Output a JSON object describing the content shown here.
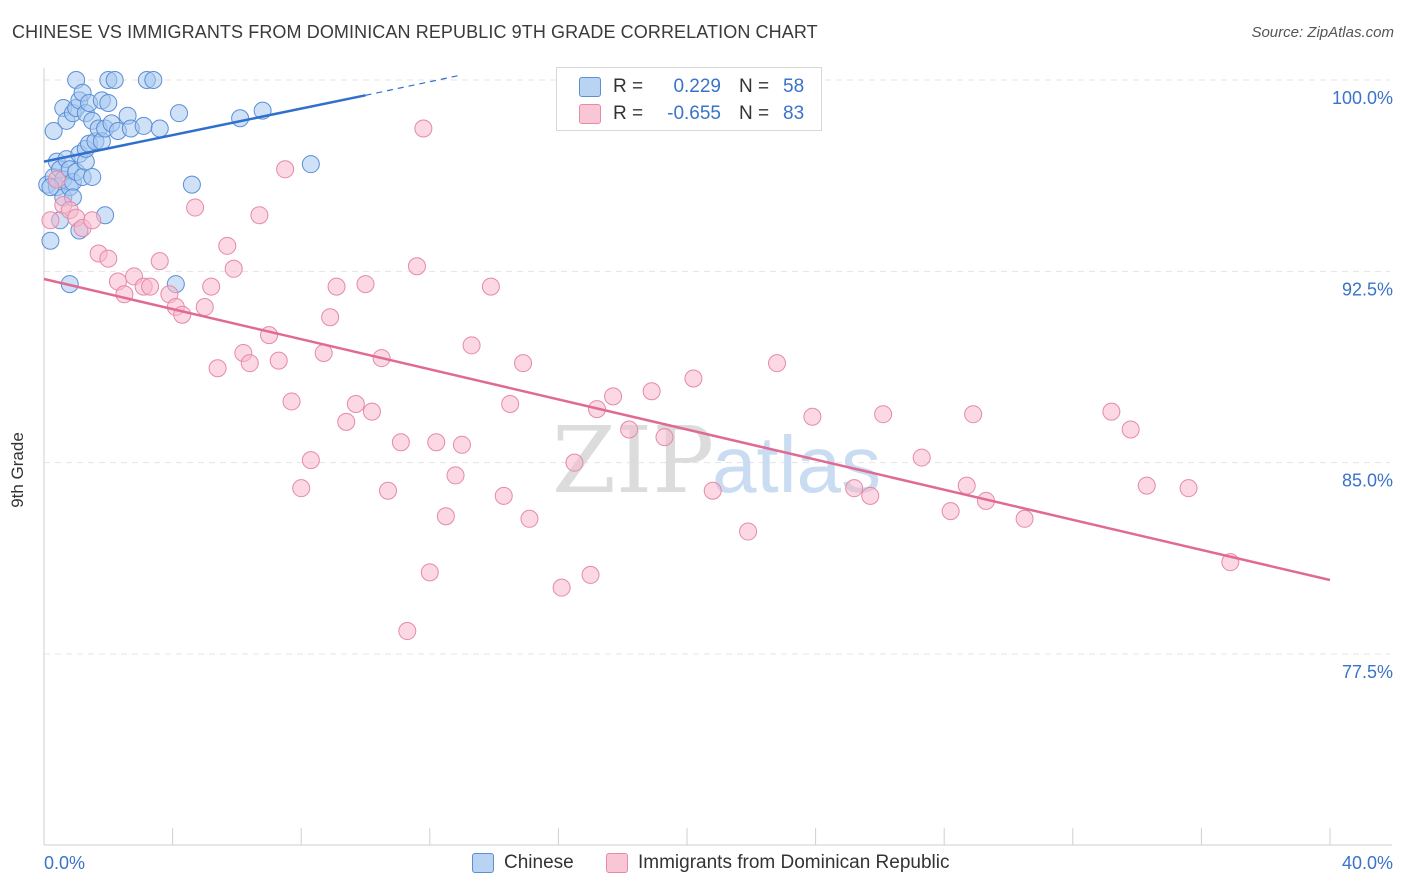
{
  "title": "CHINESE VS IMMIGRANTS FROM DOMINICAN REPUBLIC 9TH GRADE CORRELATION CHART",
  "source": "Source: ZipAtlas.com",
  "watermark": {
    "zip": "ZIP",
    "atlas": "atlas"
  },
  "legend": {
    "r_label": "R =",
    "n_label": "N =",
    "rows": [
      {
        "r": "0.229",
        "n": "58"
      },
      {
        "r": "-0.655",
        "n": "83"
      }
    ]
  },
  "colors": {
    "chinese_fill": "#a8c8f0",
    "chinese_stroke": "#5b8fd6",
    "chinese_line": "#2f6fce",
    "dominican_fill": "#f7b8cc",
    "dominican_stroke": "#e58aa8",
    "dominican_line": "#e06a94",
    "grid": "#e4e4e4",
    "axis_text": "#3a73c9"
  },
  "chart_data": {
    "type": "scatter",
    "title": "CHINESE VS IMMIGRANTS FROM DOMINICAN REPUBLIC 9TH GRADE CORRELATION CHART",
    "xlabel": "",
    "ylabel": "9th Grade",
    "xlim": [
      0,
      40
    ],
    "ylim": [
      70,
      100.5
    ],
    "x_tick_labels": [
      "0.0%",
      "40.0%"
    ],
    "y_ticks": [
      77.5,
      85.0,
      92.5,
      100.0
    ],
    "y_tick_labels": [
      "77.5%",
      "85.0%",
      "92.5%",
      "100.0%"
    ],
    "legend_position": "top-center",
    "grid": true,
    "series": [
      {
        "name": "Chinese",
        "r": 0.229,
        "n": 58,
        "trend": {
          "x": [
            0,
            10
          ],
          "y": [
            96.8,
            99.4
          ],
          "dashed_to": [
            13,
            100.2
          ]
        },
        "points": [
          [
            0.1,
            95.9
          ],
          [
            0.2,
            93.7
          ],
          [
            0.3,
            98.0
          ],
          [
            0.3,
            96.2
          ],
          [
            0.4,
            96.8
          ],
          [
            0.4,
            95.8
          ],
          [
            0.5,
            96.5
          ],
          [
            0.5,
            94.5
          ],
          [
            0.6,
            96.1
          ],
          [
            0.6,
            95.4
          ],
          [
            0.6,
            98.9
          ],
          [
            0.7,
            96.9
          ],
          [
            0.7,
            98.4
          ],
          [
            0.8,
            96.5
          ],
          [
            0.8,
            92.0
          ],
          [
            0.8,
            95.8
          ],
          [
            0.9,
            98.7
          ],
          [
            0.9,
            96.0
          ],
          [
            0.9,
            95.4
          ],
          [
            1.0,
            96.4
          ],
          [
            1.0,
            98.9
          ],
          [
            1.0,
            100.0
          ],
          [
            1.1,
            99.2
          ],
          [
            1.1,
            97.1
          ],
          [
            1.1,
            94.1
          ],
          [
            1.2,
            99.5
          ],
          [
            1.2,
            96.2
          ],
          [
            1.3,
            96.8
          ],
          [
            1.3,
            97.3
          ],
          [
            1.3,
            98.7
          ],
          [
            1.4,
            99.1
          ],
          [
            1.4,
            97.5
          ],
          [
            1.5,
            96.2
          ],
          [
            1.5,
            98.4
          ],
          [
            1.6,
            97.6
          ],
          [
            1.7,
            98.1
          ],
          [
            1.8,
            99.2
          ],
          [
            1.8,
            97.6
          ],
          [
            1.9,
            98.1
          ],
          [
            1.9,
            94.7
          ],
          [
            2.0,
            99.1
          ],
          [
            2.0,
            100.0
          ],
          [
            2.1,
            98.3
          ],
          [
            2.2,
            100.0
          ],
          [
            2.3,
            98.0
          ],
          [
            2.6,
            98.6
          ],
          [
            2.7,
            98.1
          ],
          [
            3.1,
            98.2
          ],
          [
            3.2,
            100.0
          ],
          [
            3.4,
            100.0
          ],
          [
            3.6,
            98.1
          ],
          [
            4.1,
            92.0
          ],
          [
            4.2,
            98.7
          ],
          [
            4.6,
            95.9
          ],
          [
            6.1,
            98.5
          ],
          [
            6.8,
            98.8
          ],
          [
            8.3,
            96.7
          ],
          [
            0.2,
            95.8
          ]
        ]
      },
      {
        "name": "Immigrants from Dominican Republic",
        "r": -0.655,
        "n": 83,
        "trend": {
          "x": [
            0,
            40
          ],
          "y": [
            92.2,
            80.4
          ]
        },
        "points": [
          [
            0.2,
            94.5
          ],
          [
            0.4,
            96.1
          ],
          [
            0.6,
            95.1
          ],
          [
            0.8,
            94.9
          ],
          [
            1.0,
            94.6
          ],
          [
            1.2,
            94.2
          ],
          [
            1.5,
            94.5
          ],
          [
            1.7,
            93.2
          ],
          [
            2.0,
            93.0
          ],
          [
            2.3,
            92.1
          ],
          [
            2.5,
            91.6
          ],
          [
            2.8,
            92.3
          ],
          [
            3.1,
            91.9
          ],
          [
            3.3,
            91.9
          ],
          [
            3.6,
            92.9
          ],
          [
            3.9,
            91.6
          ],
          [
            4.1,
            91.1
          ],
          [
            4.3,
            90.8
          ],
          [
            4.7,
            95.0
          ],
          [
            5.0,
            91.1
          ],
          [
            5.2,
            91.9
          ],
          [
            5.4,
            88.7
          ],
          [
            5.7,
            93.5
          ],
          [
            5.9,
            92.6
          ],
          [
            6.2,
            89.3
          ],
          [
            6.4,
            88.9
          ],
          [
            6.7,
            94.7
          ],
          [
            7.0,
            90.0
          ],
          [
            7.3,
            89.0
          ],
          [
            7.5,
            96.5
          ],
          [
            7.7,
            87.4
          ],
          [
            8.0,
            84.0
          ],
          [
            8.3,
            85.1
          ],
          [
            8.7,
            89.3
          ],
          [
            8.9,
            90.7
          ],
          [
            9.1,
            91.9
          ],
          [
            9.4,
            86.6
          ],
          [
            9.7,
            87.3
          ],
          [
            10.0,
            92.0
          ],
          [
            10.2,
            87.0
          ],
          [
            10.5,
            89.1
          ],
          [
            10.7,
            83.9
          ],
          [
            11.1,
            85.8
          ],
          [
            11.3,
            78.4
          ],
          [
            11.6,
            92.7
          ],
          [
            11.8,
            98.1
          ],
          [
            12.0,
            80.7
          ],
          [
            12.2,
            85.8
          ],
          [
            12.5,
            82.9
          ],
          [
            12.8,
            84.5
          ],
          [
            13.0,
            85.7
          ],
          [
            13.3,
            89.6
          ],
          [
            13.9,
            91.9
          ],
          [
            14.3,
            83.7
          ],
          [
            14.5,
            87.3
          ],
          [
            14.9,
            88.9
          ],
          [
            15.1,
            82.8
          ],
          [
            16.1,
            80.1
          ],
          [
            16.5,
            85.0
          ],
          [
            17.0,
            80.6
          ],
          [
            17.2,
            87.1
          ],
          [
            17.7,
            87.6
          ],
          [
            18.2,
            86.3
          ],
          [
            18.9,
            87.8
          ],
          [
            19.3,
            86.0
          ],
          [
            20.2,
            88.3
          ],
          [
            20.8,
            83.9
          ],
          [
            21.9,
            82.3
          ],
          [
            22.8,
            88.9
          ],
          [
            23.9,
            86.8
          ],
          [
            25.2,
            84.0
          ],
          [
            25.7,
            83.7
          ],
          [
            26.1,
            86.9
          ],
          [
            27.3,
            85.2
          ],
          [
            28.2,
            83.1
          ],
          [
            28.7,
            84.1
          ],
          [
            28.9,
            86.9
          ],
          [
            29.3,
            83.5
          ],
          [
            30.5,
            82.8
          ],
          [
            33.2,
            87.0
          ],
          [
            33.8,
            86.3
          ],
          [
            34.3,
            84.1
          ],
          [
            35.6,
            84.0
          ],
          [
            36.9,
            81.1
          ]
        ]
      }
    ]
  },
  "bottom_legend": [
    "Chinese",
    "Immigrants from Dominican Republic"
  ]
}
